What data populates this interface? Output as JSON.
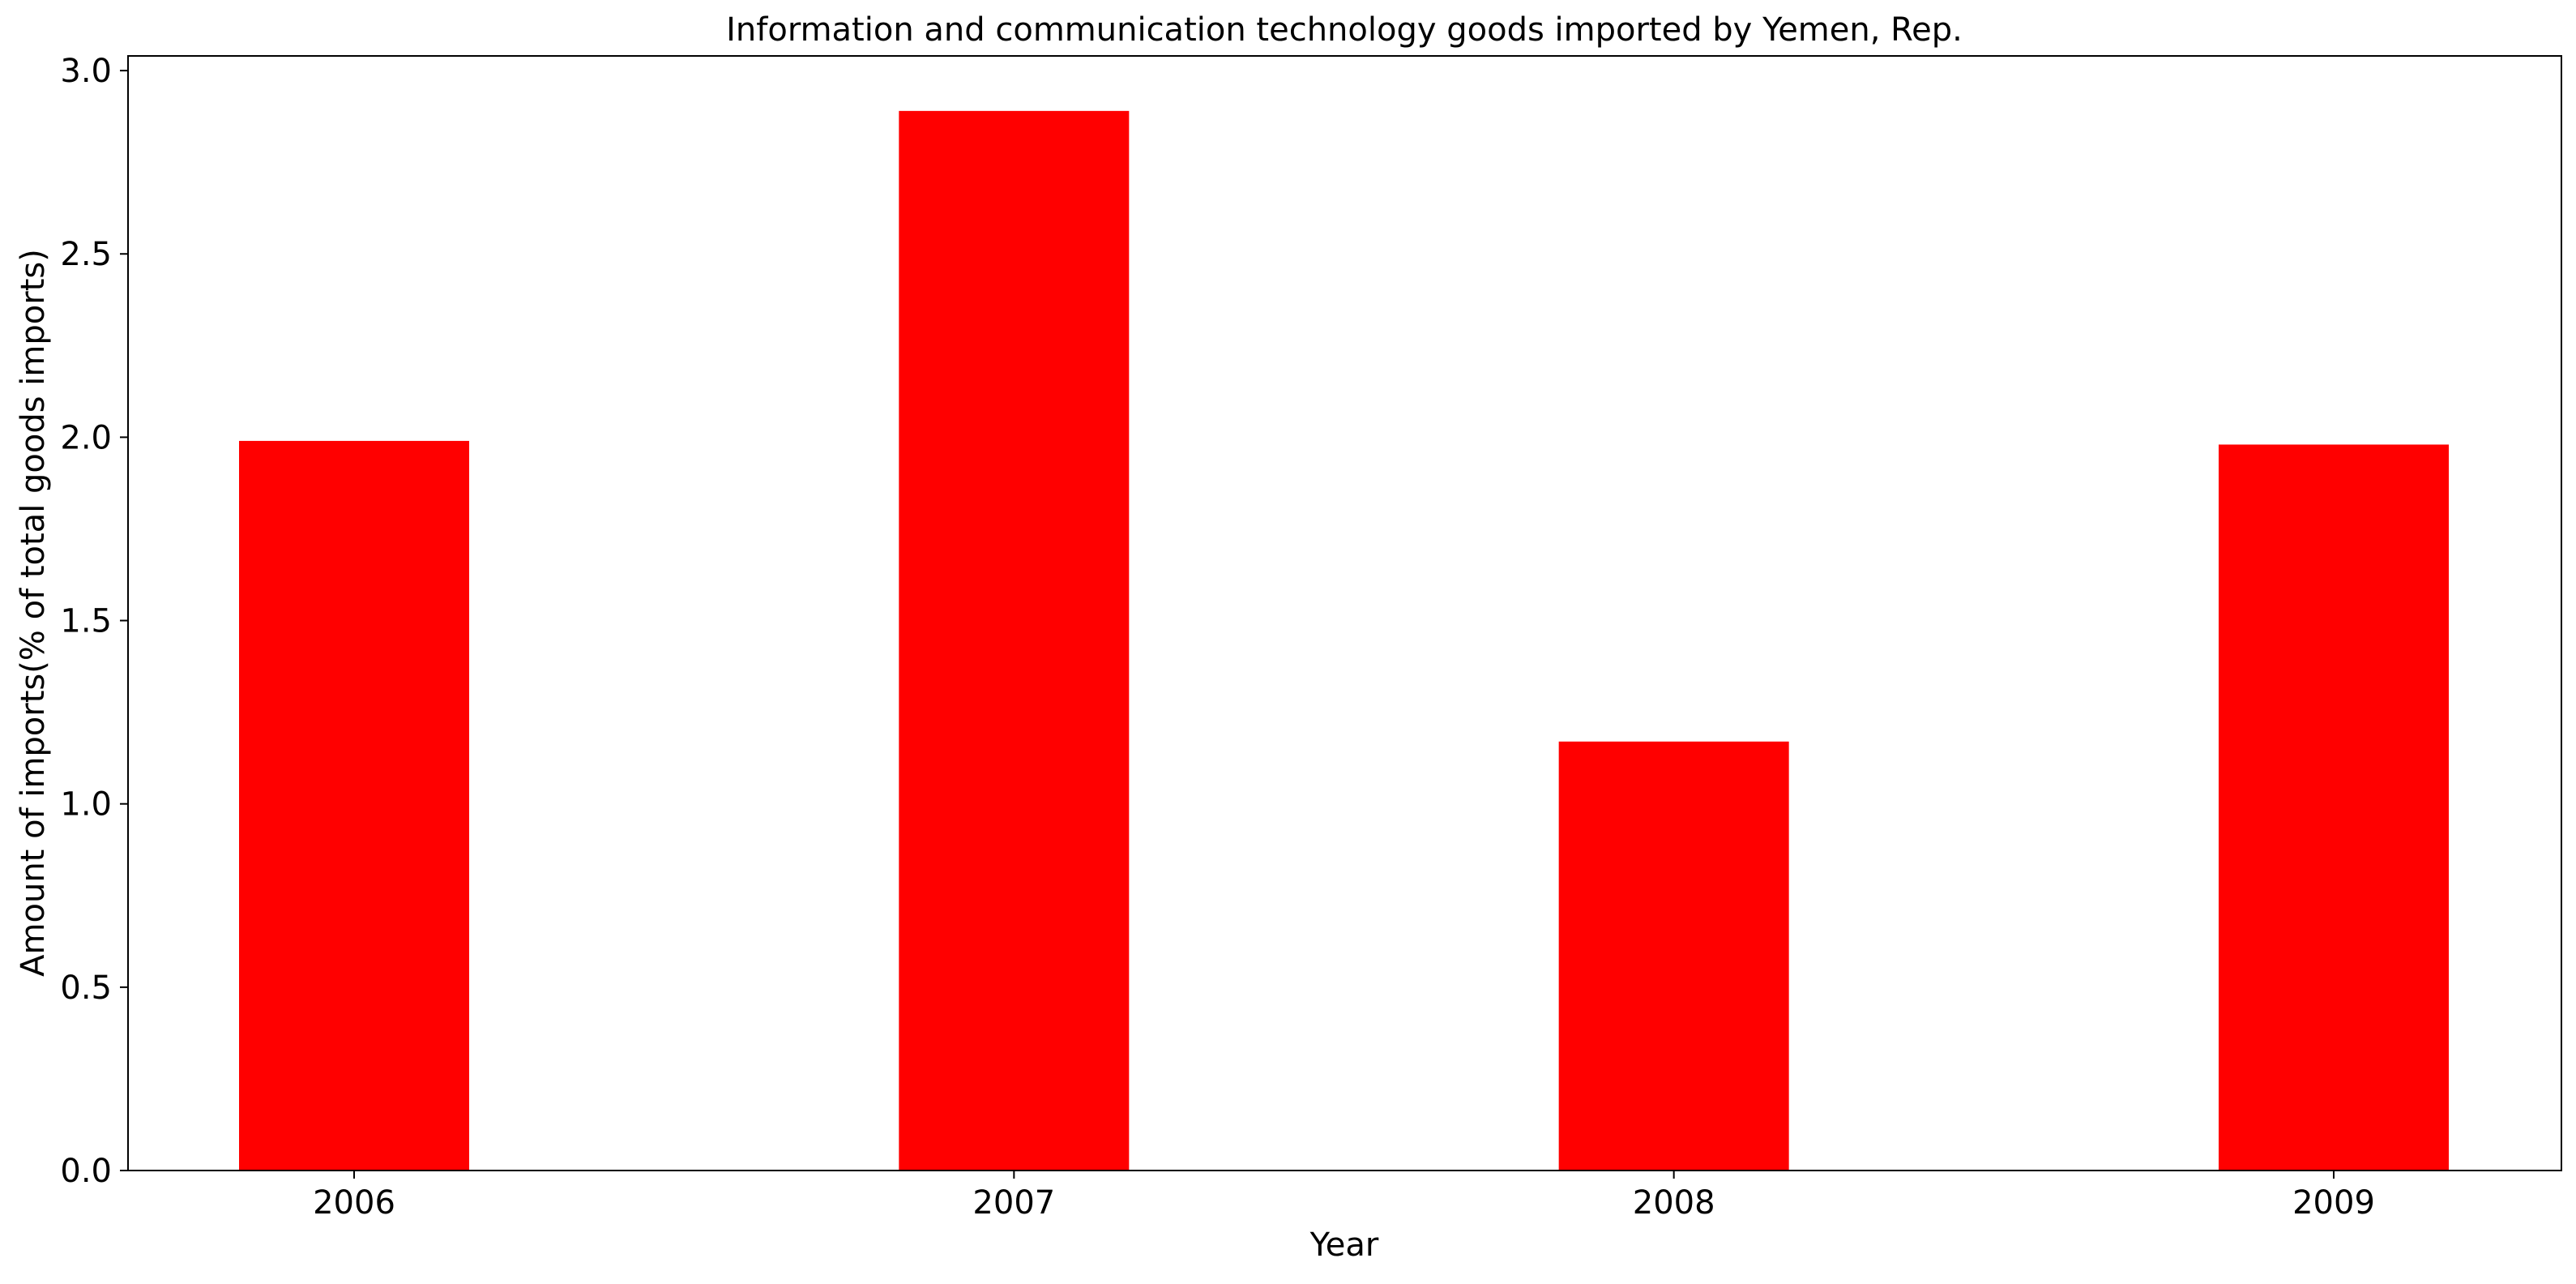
{
  "chart_data": {
    "type": "bar",
    "title": "Information and communication technology goods imported by Yemen, Rep.",
    "xlabel": "Year",
    "ylabel": "Amount of imports(% of total goods imports)",
    "categories": [
      "2006",
      "2007",
      "2008",
      "2009"
    ],
    "values": [
      1.99,
      2.89,
      1.17,
      1.98
    ],
    "ylim": [
      0,
      3.04
    ],
    "yticks": [
      0.0,
      0.5,
      1.0,
      1.5,
      2.0,
      2.5,
      3.0
    ],
    "ytick_labels": [
      "0.0",
      "0.5",
      "1.0",
      "1.5",
      "2.0",
      "2.5",
      "3.0"
    ],
    "bar_color": "#ff0000",
    "grid": false,
    "legend": "none"
  }
}
